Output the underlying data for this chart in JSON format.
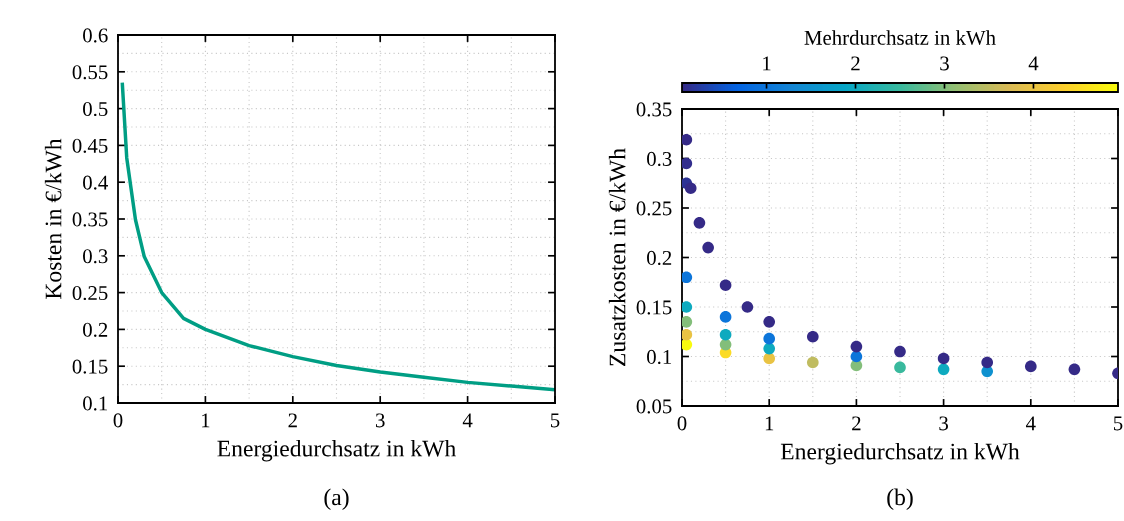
{
  "chart_data": [
    {
      "type": "line",
      "xlabel": "Energiedurchsatz in kWh",
      "ylabel": "Kosten in €/kWh",
      "annotations": [
        "(a)"
      ],
      "x": [
        0.05,
        0.1,
        0.2,
        0.3,
        0.5,
        0.75,
        1,
        1.5,
        2,
        2.5,
        3,
        3.5,
        4,
        4.5,
        5
      ],
      "series": [
        {
          "color": "#009e84",
          "values": [
            0.533,
            0.433,
            0.349,
            0.299,
            0.25,
            0.215,
            0.2,
            0.178,
            0.163,
            0.151,
            0.142,
            0.135,
            0.128,
            0.123,
            0.118
          ]
        }
      ],
      "xlim": [
        0,
        5
      ],
      "xticks": [
        0,
        1,
        2,
        3,
        4,
        5
      ],
      "ylim": [
        0.1,
        0.6
      ],
      "yticks": [
        0.1,
        0.15,
        0.2,
        0.25,
        0.3,
        0.35,
        0.4,
        0.45,
        0.5,
        0.55,
        0.6
      ],
      "grid": true,
      "legend": false
    },
    {
      "type": "scatter",
      "xlabel": "Energiedurchsatz in kWh",
      "ylabel": "Zusatzkosten in €/kWh",
      "clabel": "Mehrdurchsatz in kWh",
      "annotations": [
        "(b)"
      ],
      "x": [
        0.05,
        0.05,
        0.05,
        0.05,
        0.05,
        0.05,
        0.05,
        0.05,
        0.1,
        0.2,
        0.3,
        0.5,
        0.5,
        0.5,
        0.5,
        0.5,
        0.75,
        1,
        1,
        1,
        1,
        1.5,
        1.5,
        2,
        2,
        2,
        2.5,
        2.5,
        3,
        3,
        3.5,
        3.5,
        4,
        4.5,
        5
      ],
      "values": [
        0.112,
        0.122,
        0.135,
        0.15,
        0.18,
        0.275,
        0.295,
        0.319,
        0.27,
        0.235,
        0.21,
        0.104,
        0.112,
        0.122,
        0.14,
        0.172,
        0.15,
        0.098,
        0.108,
        0.118,
        0.135,
        0.094,
        0.12,
        0.091,
        0.1,
        0.11,
        0.089,
        0.105,
        0.087,
        0.098,
        0.085,
        0.094,
        0.09,
        0.087,
        0.083
      ],
      "cvalues": [
        4.95,
        4,
        3,
        2,
        1,
        0.15,
        0.1,
        0.05,
        0.05,
        0.05,
        0.05,
        4.5,
        3,
        2,
        1,
        0.05,
        0.05,
        4,
        2,
        1,
        0.05,
        3.5,
        0.05,
        3,
        1,
        0.05,
        2.5,
        0.05,
        2,
        0.05,
        1.5,
        0.05,
        0.05,
        0.05,
        0.05
      ],
      "marker": "circle",
      "clim": [
        0.05,
        4.95
      ],
      "cticks": [
        1,
        2,
        3,
        4
      ],
      "xlim": [
        0,
        5
      ],
      "xticks": [
        0,
        1,
        2,
        3,
        4,
        5
      ],
      "ylim": [
        0.05,
        0.35
      ],
      "yticks": [
        0.05,
        0.1,
        0.15,
        0.2,
        0.25,
        0.3,
        0.35
      ],
      "grid": true,
      "legend": false
    }
  ]
}
